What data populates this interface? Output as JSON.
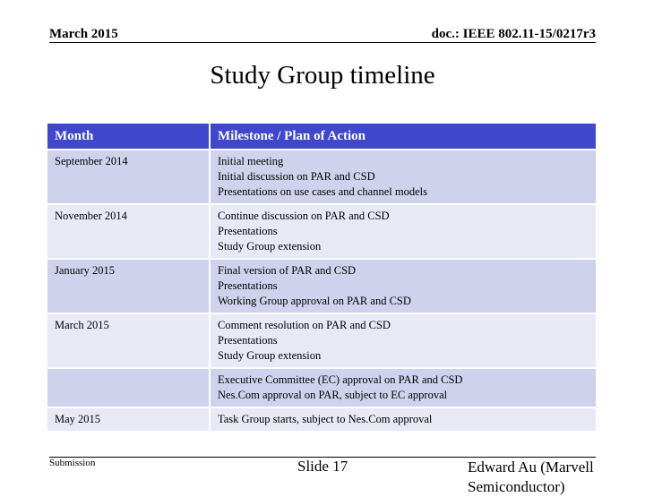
{
  "header": {
    "date": "March 2015",
    "doc": "doc.: IEEE 802.11-15/0217r3"
  },
  "title": "Study Group timeline",
  "table": {
    "columns": [
      "Month",
      "Milestone / Plan of Action"
    ],
    "rows": [
      {
        "month": "September 2014",
        "milestones": [
          "Initial meeting",
          "Initial discussion on PAR and CSD",
          "Presentations on use cases and channel models"
        ]
      },
      {
        "month": "November 2014",
        "milestones": [
          "Continue discussion on PAR and CSD",
          "Presentations",
          "Study Group extension"
        ]
      },
      {
        "month": "January 2015",
        "milestones": [
          "Final version of PAR and CSD",
          "Presentations",
          "Working Group approval on PAR and CSD"
        ]
      },
      {
        "month": "March 2015",
        "milestones": [
          "Comment resolution on PAR and CSD",
          "Presentations",
          "Study Group extension"
        ]
      },
      {
        "milestones": [
          "Executive Committee (EC) approval on PAR and CSD",
          "Nes.Com approval on PAR, subject to EC approval"
        ]
      },
      {
        "month": "May 2015",
        "milestones": [
          "Task Group starts, subject to Nes.Com approval"
        ]
      }
    ]
  },
  "footer": {
    "left": "Submission",
    "center": "Slide 17",
    "right": "Edward Au (Marvell Semiconductor)"
  }
}
